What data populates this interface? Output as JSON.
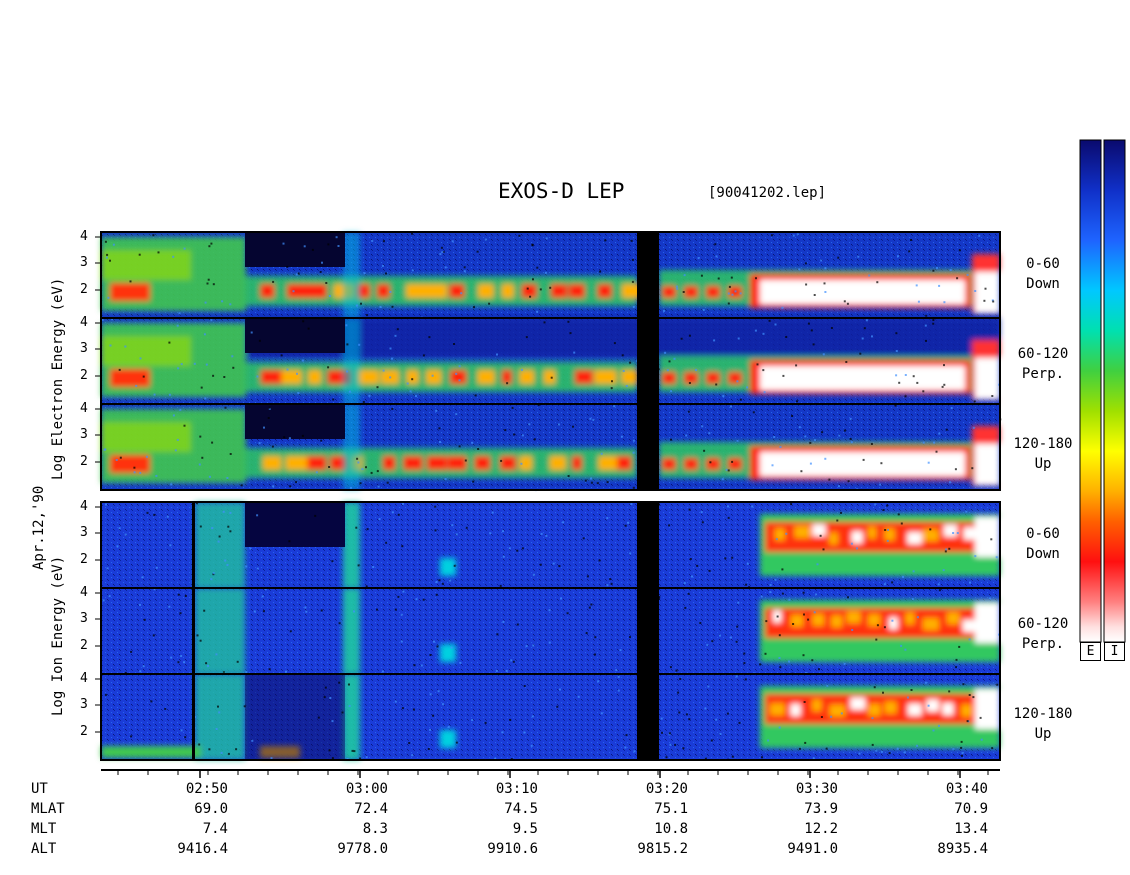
{
  "header": {
    "title": "EXOS-D LEP",
    "file": "[90041202.lep]"
  },
  "date_label": "Apr.12,'90",
  "colorbar_tags": [
    "E",
    "I"
  ],
  "colors": {
    "scale": [
      "#0a0a6e",
      "#1030c8",
      "#1e64ff",
      "#00c8ff",
      "#00e0b0",
      "#40d040",
      "#a0e000",
      "#ffff00",
      "#ffb000",
      "#ff6000",
      "#ff1010",
      "#ff8080",
      "#ffe0e0",
      "#ffffff"
    ]
  },
  "chart_data": {
    "type": "heatmap",
    "title": "EXOS-D LEP",
    "x_ticks": [
      "02:50",
      "03:00",
      "03:10",
      "03:20",
      "03:30",
      "03:40"
    ],
    "y_ticks": [
      4,
      3,
      2
    ],
    "groups": [
      {
        "ylabel_lines": [
          "Log Electron Energy (eV)"
        ],
        "ylabel": "Log Electron Energy (eV)",
        "panels": [
          {
            "angle": "0-60",
            "direction": "Down"
          },
          {
            "angle": "60-120",
            "direction": "Perp."
          },
          {
            "angle": "120-180",
            "direction": "Up"
          }
        ]
      },
      {
        "ylabel": "Log Ion Energy (eV)",
        "panels": [
          {
            "angle": "0-60",
            "direction": "Down"
          },
          {
            "angle": "60-120",
            "direction": "Perp."
          },
          {
            "angle": "120-180",
            "direction": "Up"
          }
        ]
      }
    ],
    "orbit": {
      "labels": [
        "UT",
        "MLAT",
        "MLT",
        "ALT"
      ],
      "columns": [
        {
          "UT": "02:50",
          "MLAT": "69.0",
          "MLT": "7.4",
          "ALT": "9416.4"
        },
        {
          "UT": "03:00",
          "MLAT": "72.4",
          "MLT": "8.3",
          "ALT": "9778.0"
        },
        {
          "UT": "03:10",
          "MLAT": "74.5",
          "MLT": "9.5",
          "ALT": "9910.6"
        },
        {
          "UT": "03:20",
          "MLAT": "75.1",
          "MLT": "10.8",
          "ALT": "9815.2"
        },
        {
          "UT": "03:30",
          "MLAT": "73.9",
          "MLT": "12.2",
          "ALT": "9491.0"
        },
        {
          "UT": "03:40",
          "MLAT": "70.9",
          "MLT": "13.4",
          "ALT": "8935.4"
        }
      ]
    }
  }
}
